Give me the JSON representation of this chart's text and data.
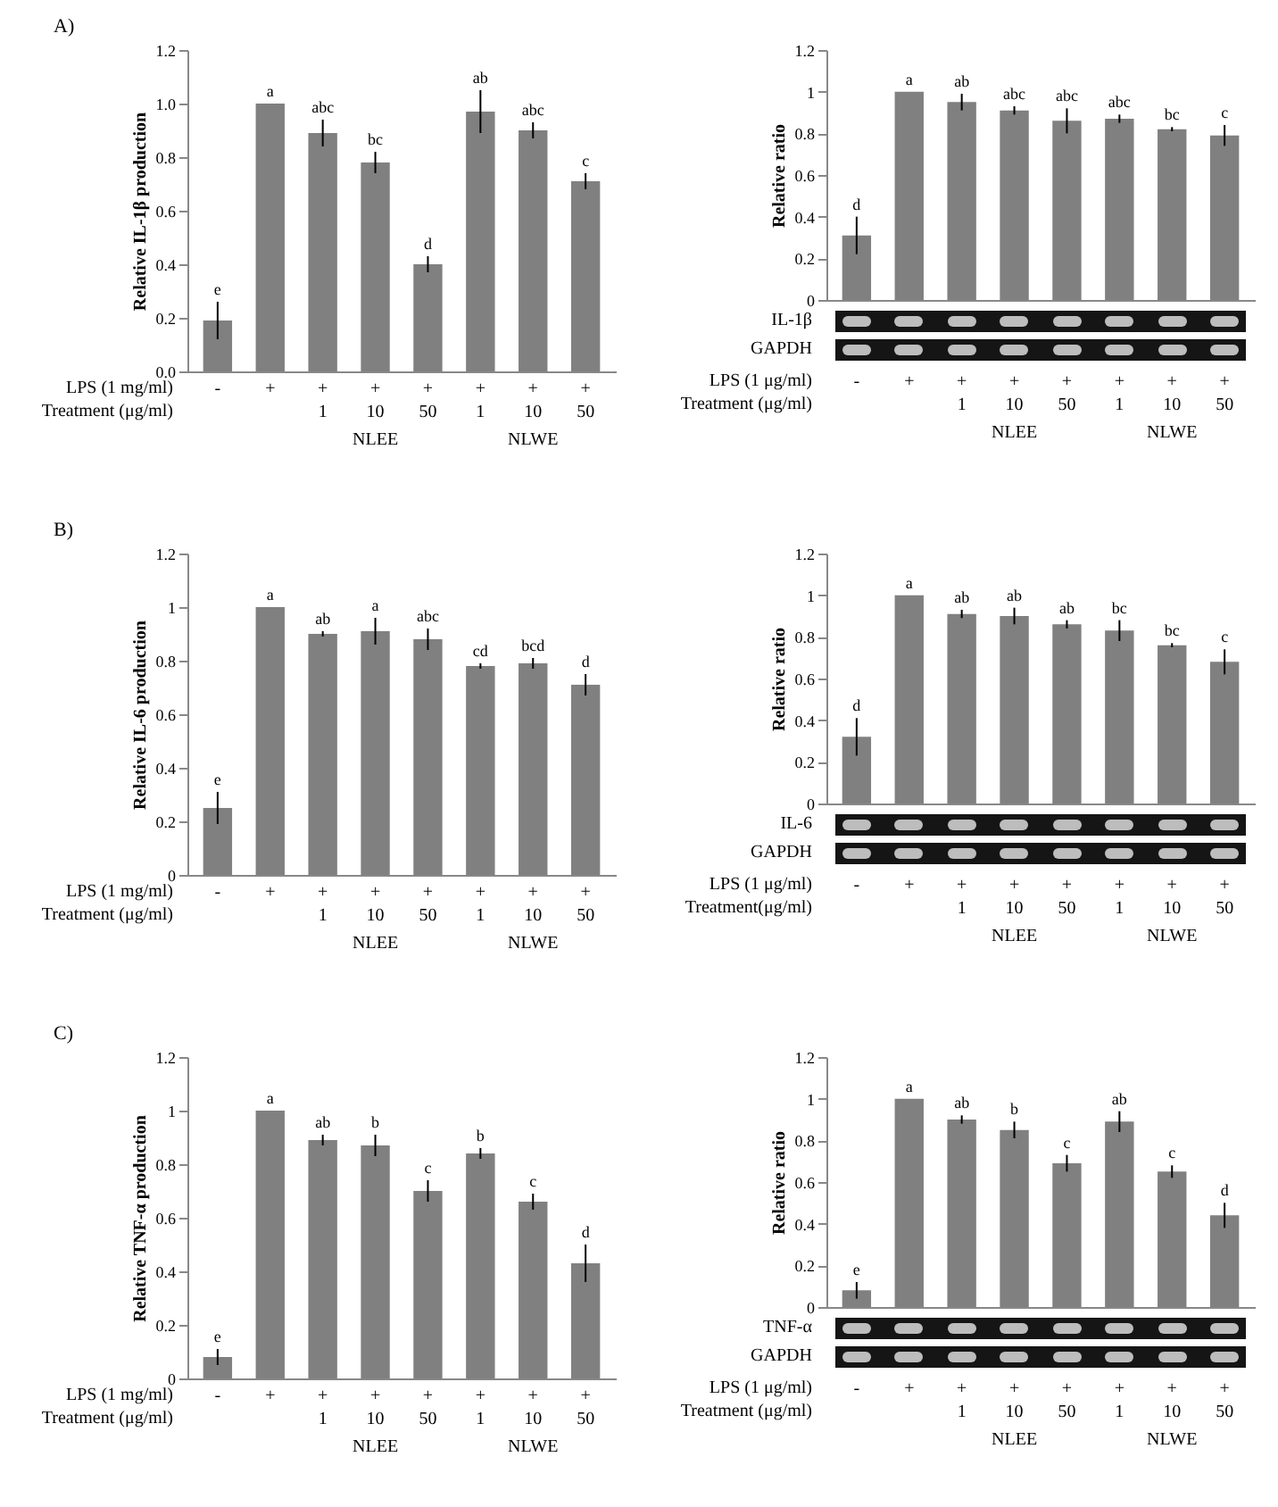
{
  "chart_data": [
    {
      "type": "bar",
      "title": "A)",
      "ylabel": "Relative IL-1β production",
      "xlabel": "LPS  (1 mg/ml)\nTreatment (μg/ml)",
      "categories": [
        "-",
        "+",
        "+\n1",
        "+\n10",
        "+\n50",
        "+\n1",
        "+\n10",
        "+\n50"
      ],
      "values": [
        0.19,
        1.0,
        0.89,
        0.78,
        0.4,
        0.97,
        0.9,
        0.71
      ],
      "errors": [
        0.07,
        null,
        0.05,
        0.04,
        0.03,
        0.08,
        0.03,
        0.03
      ],
      "value_labels": [
        "e",
        "a",
        "abc",
        "bc",
        "d",
        "ab",
        "abc",
        "c"
      ],
      "color": "#808080",
      "ylim": [
        0,
        1.2
      ],
      "yticks": [
        {
          "value": 0,
          "label": "0.0"
        },
        {
          "value": 0.2,
          "label": "0.2"
        },
        {
          "value": 0.4,
          "label": "0.4"
        },
        {
          "value": 0.6,
          "label": "0.6"
        },
        {
          "value": 0.8,
          "label": "0.8"
        },
        {
          "value": 1,
          "label": "1.0"
        },
        {
          "value": 1.2,
          "label": "1.2"
        }
      ],
      "annotations": [
        "NLEE",
        "NLWE"
      ]
    },
    {
      "type": "bar",
      "ylabel": "Relative ratio",
      "xlabel": "LPS (1 μg/ml)\nTreatment (μg/ml)",
      "categories": [
        "-",
        "+",
        "+\n1",
        "+\n10",
        "+\n50",
        "+\n1",
        "+\n10",
        "+\n50"
      ],
      "values": [
        0.31,
        1.0,
        0.95,
        0.91,
        0.86,
        0.87,
        0.82,
        0.79
      ],
      "errors": [
        0.09,
        null,
        0.04,
        0.02,
        0.06,
        0.02,
        0.01,
        0.05
      ],
      "value_labels": [
        "d",
        "a",
        "ab",
        "abc",
        "abc",
        "abc",
        "bc",
        "c"
      ],
      "color": "#808080",
      "ylim": [
        0,
        1.2
      ],
      "yticks": [
        0,
        0.2,
        0.4,
        0.6,
        0.8,
        1,
        1.2
      ],
      "annotations": [
        "IL-1β",
        "GAPDH",
        "NLEE",
        "NLWE"
      ]
    },
    {
      "type": "bar",
      "title": "B)",
      "ylabel": "Relative IL-6 production",
      "xlabel": "LPS  (1 mg/ml)\nTreatment (μg/ml)",
      "categories": [
        "-",
        "+",
        "+\n1",
        "+\n10",
        "+\n50",
        "+\n1",
        "+\n10",
        "+\n50"
      ],
      "values": [
        0.25,
        1.0,
        0.9,
        0.91,
        0.88,
        0.78,
        0.79,
        0.71
      ],
      "errors": [
        0.06,
        null,
        0.01,
        0.05,
        0.04,
        0.01,
        0.02,
        0.04
      ],
      "value_labels": [
        "e",
        "a",
        "ab",
        "a",
        "abc",
        "cd",
        "bcd",
        "d"
      ],
      "color": "#808080",
      "ylim": [
        0,
        1.2
      ],
      "yticks": [
        0,
        0.2,
        0.4,
        0.6,
        0.8,
        1,
        1.2
      ],
      "annotations": [
        "NLEE",
        "NLWE"
      ]
    },
    {
      "type": "bar",
      "ylabel": "Relative ratio",
      "xlabel": "LPS (1 μg/ml)\nTreatment(μg/ml)",
      "categories": [
        "-",
        "+",
        "+\n1",
        "+\n10",
        "+\n50",
        "+\n1",
        "+\n10",
        "+\n50"
      ],
      "values": [
        0.32,
        1.0,
        0.91,
        0.9,
        0.86,
        0.83,
        0.76,
        0.68
      ],
      "errors": [
        0.09,
        null,
        0.02,
        0.04,
        0.02,
        0.05,
        0.01,
        0.06
      ],
      "value_labels": [
        "d",
        "a",
        "ab",
        "ab",
        "ab",
        "bc",
        "bc",
        "c"
      ],
      "color": "#808080",
      "ylim": [
        0,
        1.2
      ],
      "yticks": [
        0,
        0.2,
        0.4,
        0.6,
        0.8,
        1,
        1.2
      ],
      "annotations": [
        "IL-6",
        "GAPDH",
        "NLEE",
        "NLWE"
      ]
    },
    {
      "type": "bar",
      "title": "C)",
      "ylabel": "Relative TNF-α production",
      "xlabel": "LPS  (1 mg/ml)\nTreatment (μg/ml)",
      "categories": [
        "-",
        "+",
        "+\n1",
        "+\n10",
        "+\n50",
        "+\n1",
        "+\n10",
        "+\n50"
      ],
      "values": [
        0.08,
        1.0,
        0.89,
        0.87,
        0.7,
        0.84,
        0.66,
        0.43
      ],
      "errors": [
        0.03,
        null,
        0.02,
        0.04,
        0.04,
        0.02,
        0.03,
        0.07
      ],
      "value_labels": [
        "e",
        "a",
        "ab",
        "b",
        "c",
        "b",
        "c",
        "d"
      ],
      "color": "#808080",
      "ylim": [
        0,
        1.2
      ],
      "yticks": [
        0,
        0.2,
        0.4,
        0.6,
        0.8,
        1,
        1.2
      ],
      "annotations": [
        "NLEE",
        "NLWE"
      ]
    },
    {
      "type": "bar",
      "ylabel": "Relative ratio",
      "xlabel": "LPS (1 μg/ml)\nTreatment (μg/ml)",
      "categories": [
        "-",
        "+",
        "+\n1",
        "+\n10",
        "+\n50",
        "+\n1",
        "+\n10",
        "+\n50"
      ],
      "values": [
        0.08,
        1.0,
        0.9,
        0.85,
        0.69,
        0.89,
        0.65,
        0.44
      ],
      "errors": [
        0.04,
        null,
        0.02,
        0.04,
        0.04,
        0.05,
        0.03,
        0.06
      ],
      "value_labels": [
        "e",
        "a",
        "ab",
        "b",
        "c",
        "ab",
        "c",
        "d"
      ],
      "color": "#808080",
      "ylim": [
        0,
        1.2
      ],
      "yticks": [
        0,
        0.2,
        0.4,
        0.6,
        0.8,
        1,
        1.2
      ],
      "annotations": [
        "TNF-α",
        "GAPDH",
        "NLEE",
        "NLWE"
      ]
    }
  ]
}
